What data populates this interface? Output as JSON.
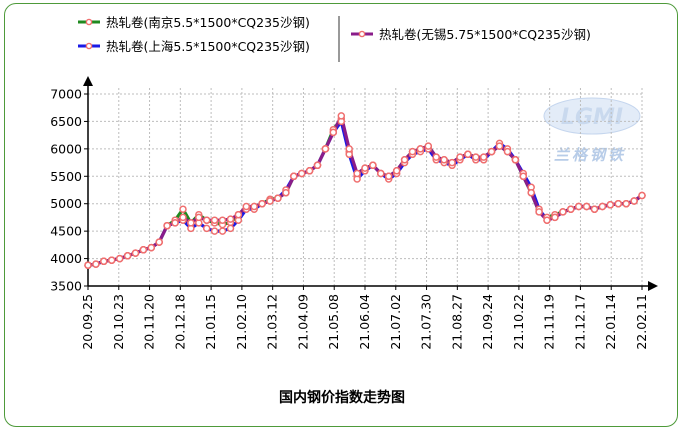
{
  "chart_data": {
    "type": "line",
    "title": "国内钢价指数走势图",
    "xlabel": "",
    "ylabel": "",
    "ylim": [
      3500,
      7000
    ],
    "yticks": [
      3500,
      4000,
      4500,
      5000,
      5500,
      6000,
      6500,
      7000
    ],
    "x_tick_labels": [
      "20.09.25",
      "20.10.23",
      "20.11.20",
      "20.12.18",
      "21.01.15",
      "21.02.10",
      "21.03.12",
      "21.04.09",
      "21.05.08",
      "21.06.04",
      "21.07.02",
      "21.07.30",
      "21.08.27",
      "21.09.24",
      "21.10.22",
      "21.11.19",
      "21.12.17",
      "22.01.14",
      "22.02.11"
    ],
    "grid": true,
    "legend_position": "top",
    "marker_color": "#ef6f6f",
    "series": [
      {
        "name": "热轧卷(南京5.5*1500*CQ235沙钢)",
        "color": "#1f8a1f",
        "values": [
          3880,
          3900,
          3950,
          3970,
          4000,
          4050,
          4100,
          4160,
          4200,
          4300,
          4600,
          4700,
          4900,
          4650,
          4800,
          4700,
          4650,
          4620,
          4660,
          4800,
          4930,
          4950,
          5000,
          5080,
          5100,
          5200,
          5500,
          5550,
          5600,
          5700,
          6000,
          6350,
          6550,
          5950,
          5500,
          5650,
          5700,
          5550,
          5500,
          5600,
          5800,
          5950,
          6000,
          6050,
          5850,
          5800,
          5750,
          5850,
          5900,
          5850,
          5850,
          5950,
          6050,
          5950,
          5800,
          5500,
          5200,
          4850,
          4750,
          4800,
          4850,
          4900,
          4950,
          4950,
          4900,
          4950,
          4980,
          5000,
          5000,
          5050,
          5150
        ]
      },
      {
        "name": "热轧卷(上海5.5*1500*CQ235沙钢)",
        "color": "#1a1ae6",
        "values": [
          3880,
          3900,
          3950,
          3970,
          4000,
          4050,
          4100,
          4160,
          4200,
          4300,
          4600,
          4650,
          4700,
          4550,
          4650,
          4550,
          4500,
          4500,
          4550,
          4700,
          4900,
          4900,
          5000,
          5050,
          5100,
          5250,
          5500,
          5550,
          5600,
          5700,
          6000,
          6300,
          6500,
          5900,
          5450,
          5600,
          5700,
          5550,
          5450,
          5550,
          5750,
          5900,
          5950,
          6000,
          5800,
          5750,
          5700,
          5800,
          5900,
          5800,
          5800,
          5950,
          6100,
          6000,
          5800,
          5550,
          5300,
          4900,
          4700,
          4750,
          4850,
          4900,
          4950,
          4950,
          4900,
          4950,
          4980,
          5000,
          5000,
          5050,
          5150
        ]
      },
      {
        "name": "热轧卷(无锡5.75*1500*CQ235沙钢)",
        "color": "#8a1c8a",
        "values": [
          3880,
          3900,
          3950,
          3970,
          4000,
          4050,
          4100,
          4160,
          4200,
          4300,
          4600,
          4650,
          4750,
          4650,
          4750,
          4700,
          4700,
          4700,
          4720,
          4800,
          4950,
          4950,
          5000,
          5050,
          5100,
          5200,
          5500,
          5550,
          5600,
          5700,
          6000,
          6300,
          6600,
          6000,
          5550,
          5650,
          5700,
          5550,
          5500,
          5600,
          5800,
          5950,
          6000,
          6050,
          5850,
          5800,
          5750,
          5850,
          5900,
          5850,
          5850,
          5950,
          6050,
          5950,
          5800,
          5500,
          5200,
          4850,
          4700,
          4750,
          4850,
          4900,
          4950,
          4950,
          4900,
          4950,
          4980,
          5000,
          5000,
          5050,
          5150
        ]
      }
    ]
  },
  "watermark": {
    "logo_text": "LGMI",
    "brand_text": "兰格钢铁"
  }
}
